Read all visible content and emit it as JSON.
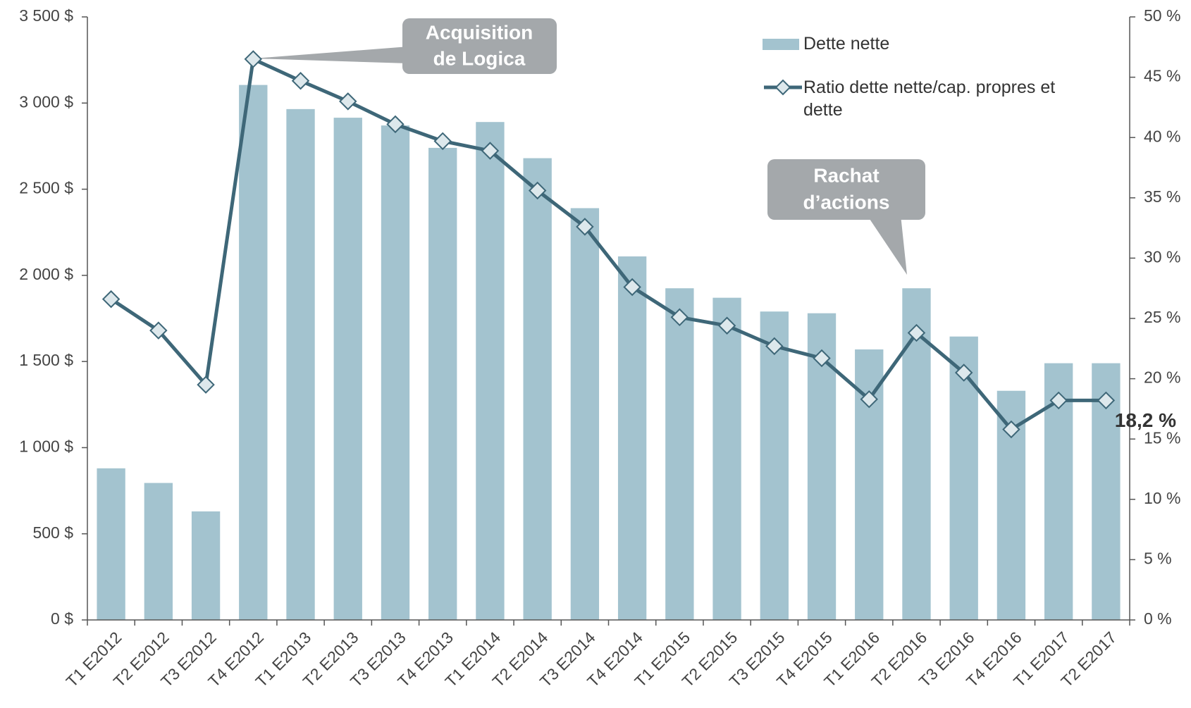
{
  "chart_data": {
    "type": "bar-line",
    "categories": [
      "T1 E2012",
      "T2 E2012",
      "T3 E2012",
      "T4 E2012",
      "T1 E2013",
      "T2 E2013",
      "T3 E2013",
      "T4 E2013",
      "T1 E2014",
      "T2 E2014",
      "T3 E2014",
      "T4 E2014",
      "T1 E2015",
      "T2 E2015",
      "T3 E2015",
      "T4 E2015",
      "T1 E2016",
      "T2 E2016",
      "T3 E2016",
      "T4 E2016",
      "T1 E2017",
      "T2 E2017"
    ],
    "series": [
      {
        "name": "Dette nette",
        "type": "bar",
        "color": "#a3c3cf",
        "values": [
          880,
          795,
          630,
          3105,
          2965,
          2915,
          2870,
          2740,
          2890,
          2680,
          2390,
          2110,
          1925,
          1870,
          1790,
          1780,
          1570,
          1925,
          1645,
          1330,
          1490,
          1490
        ]
      },
      {
        "name": "Ratio dette nette/cap. propres et dette",
        "type": "line",
        "axis": "y2",
        "color": "#3e6778",
        "values": [
          26.6,
          24.0,
          19.5,
          46.5,
          44.7,
          43.0,
          41.1,
          39.7,
          38.9,
          35.6,
          32.6,
          27.6,
          25.1,
          24.4,
          22.7,
          21.7,
          18.3,
          23.8,
          20.5,
          15.8,
          18.2,
          18.2
        ],
        "value_labels": [
          null,
          null,
          null,
          null,
          null,
          null,
          null,
          null,
          null,
          null,
          null,
          null,
          null,
          null,
          null,
          null,
          null,
          null,
          null,
          null,
          null,
          "18,2 %"
        ]
      }
    ],
    "ylim": [
      0,
      3500
    ],
    "yticks": [
      {
        "value": 0,
        "label": "0 $"
      },
      {
        "value": 500,
        "label": "500 $"
      },
      {
        "value": 1000,
        "label": "1 000 $"
      },
      {
        "value": 1500,
        "label": "1 500 $"
      },
      {
        "value": 2000,
        "label": "2 000 $"
      },
      {
        "value": 2500,
        "label": "2 500 $"
      },
      {
        "value": 3000,
        "label": "3 000 $"
      },
      {
        "value": 3500,
        "label": "3 500 $"
      }
    ],
    "y2lim": [
      0,
      50
    ],
    "y2ticks": [
      {
        "value": 0,
        "label": "0 %"
      },
      {
        "value": 5,
        "label": "5 %"
      },
      {
        "value": 10,
        "label": "10 %"
      },
      {
        "value": 15,
        "label": "15 %"
      },
      {
        "value": 20,
        "label": "20 %"
      },
      {
        "value": 25,
        "label": "25 %"
      },
      {
        "value": 30,
        "label": "30 %"
      },
      {
        "value": 35,
        "label": "35 %"
      },
      {
        "value": 40,
        "label": "40 %"
      },
      {
        "value": 45,
        "label": "45 %"
      },
      {
        "value": 50,
        "label": "50 %"
      }
    ],
    "annotations": [
      [
        "Acquisition",
        "de Logica"
      ],
      [
        "Rachat",
        "d’actions"
      ]
    ],
    "grid": false
  }
}
